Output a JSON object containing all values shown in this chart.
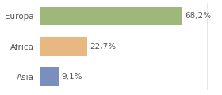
{
  "categories": [
    "Asia",
    "Africa",
    "Europa"
  ],
  "values": [
    9.1,
    22.7,
    68.2
  ],
  "bar_colors": [
    "#7b8fbe",
    "#e8b882",
    "#9db87a"
  ],
  "labels": [
    "9,1%",
    "22,7%",
    "68,2%"
  ],
  "background_color": "#ffffff",
  "bar_height": 0.62,
  "xlim": [
    0,
    85
  ],
  "label_fontsize": 7.5,
  "tick_fontsize": 7.5,
  "grid_color": "#dddddd",
  "label_color": "#555555",
  "tick_color": "#555555"
}
